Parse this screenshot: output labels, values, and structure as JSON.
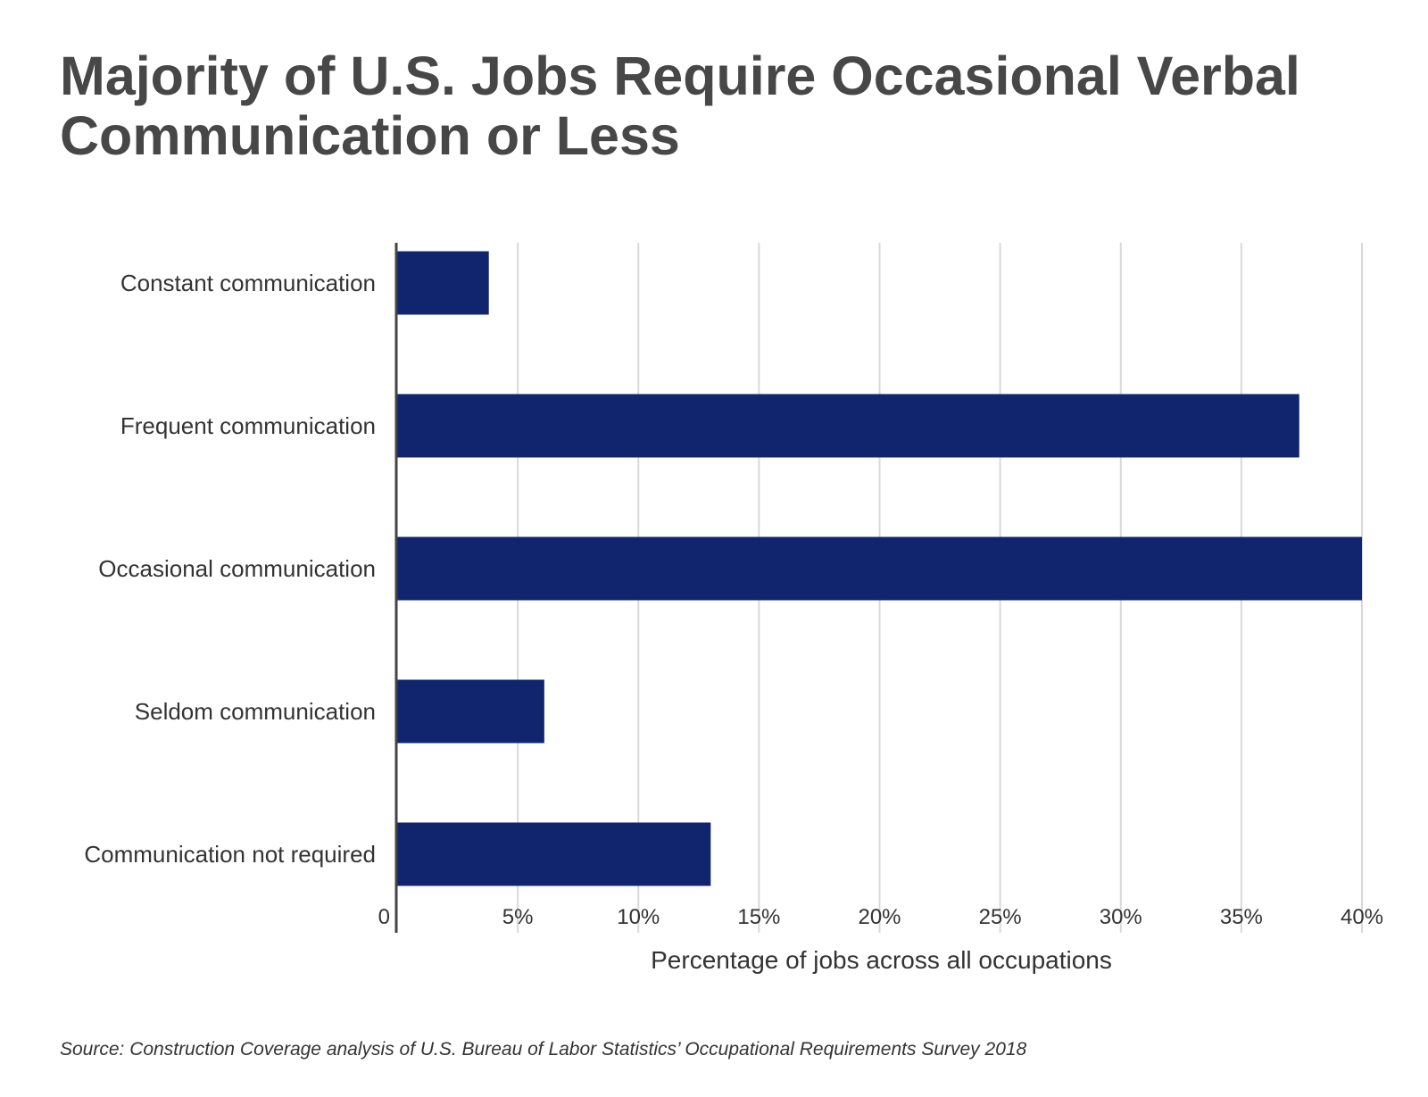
{
  "title": "Majority of U.S. Jobs Require Occasional Verbal Communication or Less",
  "source": "Source: Construction Coverage analysis of U.S. Bureau of Labor Statistics’ Occupational Requirements Survey 2018",
  "colors": {
    "bar": "#10256e",
    "grid": "#d9d9d9",
    "axis": "#444444",
    "text": "#333333"
  },
  "chart_data": {
    "type": "bar",
    "orientation": "horizontal",
    "categories": [
      "Constant communication",
      "Frequent communication",
      "Occasional communication",
      "Seldom communication",
      "Communication not required"
    ],
    "values": [
      3.8,
      37.4,
      40.1,
      6.1,
      13.0
    ],
    "xlabel": "Percentage of jobs across all occupations",
    "ylabel": "",
    "xlim": [
      0,
      40
    ],
    "ticks": [
      {
        "value": 0,
        "label": "0"
      },
      {
        "value": 5,
        "label": "5%"
      },
      {
        "value": 10,
        "label": "10%"
      },
      {
        "value": 15,
        "label": "15%"
      },
      {
        "value": 20,
        "label": "20%"
      },
      {
        "value": 25,
        "label": "25%"
      },
      {
        "value": 30,
        "label": "30%"
      },
      {
        "value": 35,
        "label": "35%"
      },
      {
        "value": 40,
        "label": "40%"
      }
    ],
    "grid": true,
    "legend": "none"
  }
}
